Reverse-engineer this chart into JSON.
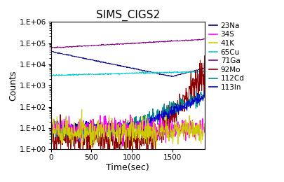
{
  "title": "SIMS_CIGS2",
  "xlabel": "Time(sec)",
  "ylabel": "Counts",
  "xlim": [
    0,
    1900
  ],
  "ylim_log": [
    1.0,
    1000000.0
  ],
  "xticks": [
    0,
    500,
    1000,
    1500
  ],
  "ytick_labels": [
    "1.E+00",
    "1.E+01",
    "1.E+02",
    "1.E+03",
    "1.E+04",
    "1.E+05",
    "1.E+06"
  ],
  "ytick_vals": [
    1.0,
    10.0,
    100.0,
    1000.0,
    10000.0,
    100000.0,
    1000000.0
  ],
  "series": {
    "23Na": {
      "color": "#000080"
    },
    "34S": {
      "color": "#FF00FF"
    },
    "41K": {
      "color": "#CCCC00"
    },
    "65Cu": {
      "color": "#00CCCC"
    },
    "71Ga": {
      "color": "#800080"
    },
    "92Mo": {
      "color": "#8B0000"
    },
    "112Cd": {
      "color": "#008B8B"
    },
    "113In": {
      "color": "#0000CD"
    }
  },
  "legend_order": [
    "23Na",
    "34S",
    "41K",
    "65Cu",
    "71Ga",
    "92Mo",
    "112Cd",
    "113In"
  ],
  "background_color": "#ffffff",
  "title_fontsize": 11,
  "axis_label_fontsize": 9,
  "tick_fontsize": 7.5,
  "legend_fontsize": 7.5
}
